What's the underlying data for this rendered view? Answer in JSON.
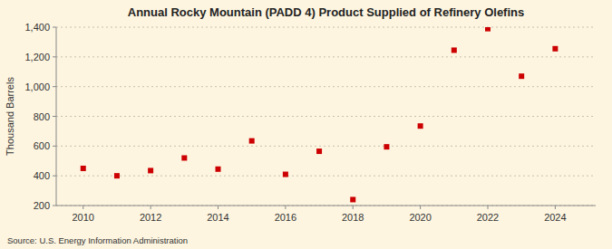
{
  "chart_data": {
    "type": "scatter",
    "title": "Annual Rocky Mountain (PADD 4) Product Supplied of Refinery Olefins",
    "y_label": "Thousand Barrels",
    "annotations": [
      "Source: U.S. Energy Information Administration"
    ],
    "x": [
      2010,
      2011,
      2012,
      2013,
      2014,
      2015,
      2016,
      2017,
      2018,
      2019,
      2020,
      2021,
      2022,
      2023,
      2024
    ],
    "values": [
      450,
      400,
      435,
      520,
      445,
      635,
      410,
      565,
      240,
      595,
      735,
      1245,
      1390,
      1070,
      1255
    ],
    "color": "#cc0000",
    "marker": "square",
    "xlim": [
      2009.2,
      2025.2
    ],
    "xticks": [
      2010,
      2012,
      2014,
      2016,
      2018,
      2020,
      2022,
      2024
    ],
    "ylim": [
      200,
      1400
    ],
    "yticks": [
      200,
      400,
      600,
      800,
      {
        "value": 1000,
        "label": "1,000"
      },
      {
        "value": 1200,
        "label": "1,200"
      },
      {
        "value": 1400,
        "label": "1,400"
      }
    ],
    "grid": true
  }
}
